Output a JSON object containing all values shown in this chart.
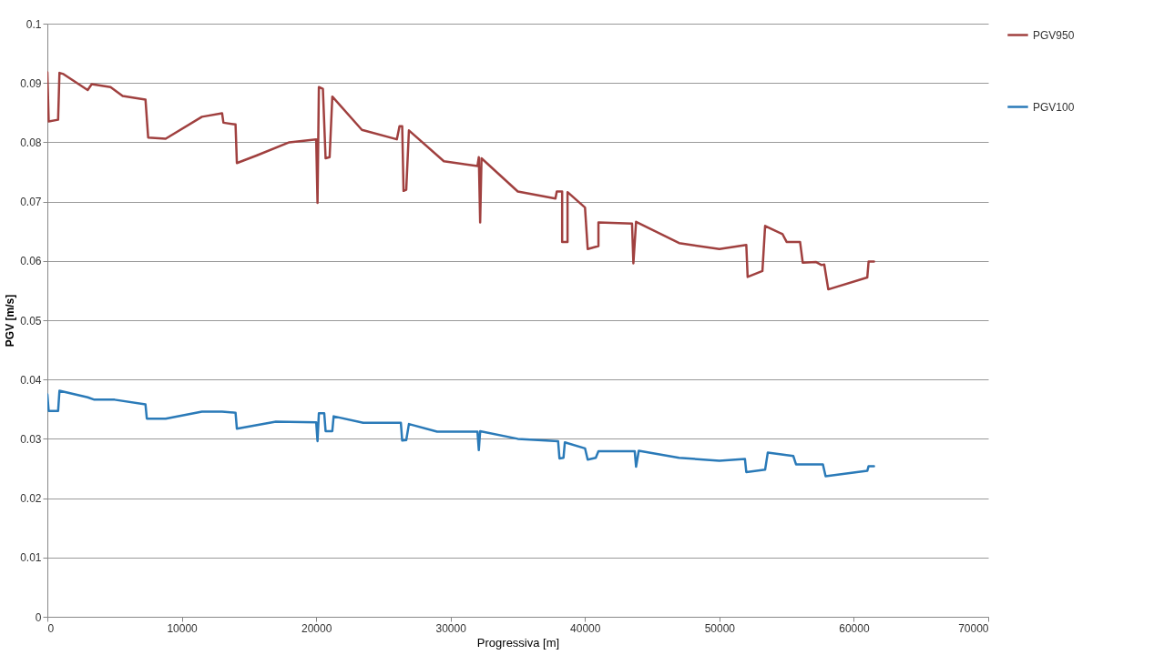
{
  "chart_data": {
    "type": "line",
    "xlabel": "Progressiva [m]",
    "ylabel": "PGV [m/s]",
    "xlim": [
      0,
      70000
    ],
    "xticks": [
      0,
      10000,
      20000,
      30000,
      40000,
      50000,
      60000,
      70000
    ],
    "ylim": [
      0,
      0.1
    ],
    "yticks": [
      0,
      0.01,
      0.02,
      0.03,
      0.04,
      0.05,
      0.06,
      0.07,
      0.08,
      0.09,
      0.1
    ],
    "grid": "y",
    "legend": "right",
    "line_style": "solid",
    "series": [
      {
        "name": "PGV950",
        "color": "#a0403f",
        "x": [
          0,
          100,
          800,
          900,
          1200,
          3000,
          3300,
          4700,
          5600,
          7300,
          7500,
          8800,
          11500,
          13000,
          13100,
          14000,
          14100,
          15600,
          18000,
          20000,
          20100,
          20200,
          20500,
          20700,
          21000,
          21200,
          23400,
          26000,
          26200,
          26400,
          26500,
          26700,
          26900,
          29500,
          32000,
          32100,
          32200,
          32300,
          35000,
          37800,
          37900,
          38300,
          38300,
          38700,
          38700,
          40000,
          40200,
          41000,
          41000,
          43500,
          43600,
          43800,
          47000,
          50000,
          52000,
          52100,
          53200,
          53400,
          54700,
          55000,
          56000,
          56200,
          57200,
          57600,
          57800,
          58100,
          61000,
          61100,
          61500
        ],
        "values": [
          0.0918,
          0.0835,
          0.0838,
          0.0917,
          0.0915,
          0.0888,
          0.0898,
          0.0893,
          0.0878,
          0.0872,
          0.0808,
          0.0806,
          0.0843,
          0.0849,
          0.0833,
          0.083,
          0.0765,
          0.0778,
          0.08,
          0.0805,
          0.0698,
          0.0893,
          0.089,
          0.0773,
          0.0775,
          0.0877,
          0.0821,
          0.0805,
          0.0827,
          0.0827,
          0.0718,
          0.072,
          0.082,
          0.0768,
          0.076,
          0.0775,
          0.0665,
          0.0773,
          0.0717,
          0.0705,
          0.0717,
          0.0717,
          0.0632,
          0.0632,
          0.0716,
          0.069,
          0.062,
          0.0625,
          0.0665,
          0.0663,
          0.0596,
          0.0666,
          0.063,
          0.062,
          0.0627,
          0.0573,
          0.0583,
          0.0659,
          0.0645,
          0.0632,
          0.0632,
          0.0597,
          0.0598,
          0.0593,
          0.0594,
          0.0552,
          0.0572,
          0.0599,
          0.0599
        ]
      },
      {
        "name": "PGV100",
        "color": "#2a7ab8",
        "x": [
          0,
          100,
          800,
          900,
          3000,
          3500,
          5000,
          7300,
          7400,
          8800,
          11500,
          13000,
          14000,
          14100,
          17000,
          20000,
          20100,
          20200,
          20600,
          20700,
          21200,
          21300,
          23500,
          26300,
          26400,
          26700,
          26900,
          29000,
          32000,
          32100,
          32200,
          35000,
          38000,
          38100,
          38400,
          38500,
          40000,
          40200,
          40800,
          41000,
          43700,
          43800,
          44000,
          47000,
          50000,
          51900,
          52000,
          53400,
          53600,
          55500,
          55700,
          57700,
          57900,
          61000,
          61100,
          61500
        ],
        "values": [
          0.0375,
          0.0347,
          0.0347,
          0.0381,
          0.037,
          0.0366,
          0.0366,
          0.0358,
          0.0334,
          0.0334,
          0.0346,
          0.0346,
          0.0344,
          0.0317,
          0.0329,
          0.0328,
          0.0296,
          0.0343,
          0.0343,
          0.0313,
          0.0313,
          0.0338,
          0.0327,
          0.0327,
          0.0297,
          0.0298,
          0.0325,
          0.0312,
          0.0312,
          0.0281,
          0.0313,
          0.03,
          0.0296,
          0.0267,
          0.0268,
          0.0294,
          0.0284,
          0.0265,
          0.0268,
          0.0279,
          0.0279,
          0.0253,
          0.028,
          0.0268,
          0.0263,
          0.0266,
          0.0244,
          0.0248,
          0.0277,
          0.0271,
          0.0257,
          0.0257,
          0.0237,
          0.0246,
          0.0254,
          0.0254
        ]
      }
    ]
  }
}
